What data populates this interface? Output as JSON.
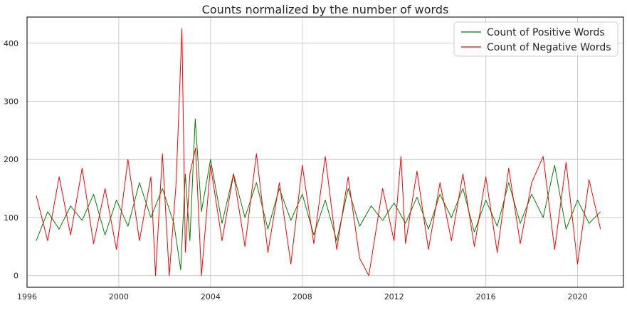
{
  "chart_data": {
    "type": "line",
    "title": "Counts normalized by the number of words",
    "xlabel": "",
    "ylabel": "",
    "xlim": [
      1996,
      2022
    ],
    "ylim": [
      -20,
      445
    ],
    "x_ticks": [
      1996,
      2000,
      2004,
      2008,
      2012,
      2016,
      2020
    ],
    "y_ticks": [
      0,
      100,
      200,
      300,
      400
    ],
    "grid": true,
    "legend_position": "top-right",
    "series": [
      {
        "name": "Count of Positive Words",
        "color": "#008000",
        "x": [
          1996.4,
          1996.9,
          1997.4,
          1997.9,
          1998.4,
          1998.9,
          1999.4,
          1999.9,
          2000.4,
          2000.9,
          2001.4,
          2001.9,
          2002.4,
          2002.7,
          2002.9,
          2003.1,
          2003.33,
          2003.6,
          2004.0,
          2004.5,
          2005.0,
          2005.5,
          2006.0,
          2006.5,
          2007.0,
          2007.5,
          2008.0,
          2008.5,
          2009.0,
          2009.5,
          2010.0,
          2010.5,
          2011.0,
          2011.5,
          2012.0,
          2012.5,
          2013.0,
          2013.5,
          2014.0,
          2014.5,
          2015.0,
          2015.5,
          2016.0,
          2016.5,
          2017.0,
          2017.5,
          2018.0,
          2018.5,
          2019.0,
          2019.5,
          2020.0,
          2020.5,
          2021.0
        ],
        "y": [
          60,
          110,
          80,
          120,
          95,
          140,
          70,
          130,
          85,
          160,
          100,
          150,
          90,
          10,
          175,
          60,
          270,
          110,
          200,
          90,
          175,
          100,
          160,
          80,
          150,
          95,
          140,
          70,
          130,
          60,
          150,
          85,
          120,
          95,
          125,
          90,
          135,
          80,
          140,
          100,
          150,
          75,
          130,
          85,
          160,
          90,
          140,
          100,
          190,
          80,
          130,
          90,
          110
        ]
      },
      {
        "name": "Count of Negative Words",
        "color": "#ff0000",
        "x": [
          1996.4,
          1996.9,
          1997.4,
          1997.9,
          1998.4,
          1998.9,
          1999.4,
          1999.9,
          2000.4,
          2000.9,
          2001.4,
          2001.6,
          2001.9,
          2002.2,
          2002.5,
          2002.75,
          2002.9,
          2003.1,
          2003.35,
          2003.6,
          2004.0,
          2004.5,
          2005.0,
          2005.5,
          2006.0,
          2006.5,
          2007.0,
          2007.5,
          2008.0,
          2008.5,
          2009.0,
          2009.5,
          2010.0,
          2010.5,
          2010.9,
          2011.5,
          2012.0,
          2012.3,
          2012.5,
          2013.0,
          2013.5,
          2014.0,
          2014.5,
          2015.0,
          2015.5,
          2016.0,
          2016.5,
          2017.0,
          2017.5,
          2018.0,
          2018.5,
          2019.0,
          2019.5,
          2020.0,
          2020.5,
          2021.0
        ],
        "y": [
          138,
          60,
          170,
          70,
          185,
          55,
          150,
          45,
          200,
          60,
          170,
          0,
          210,
          0,
          160,
          425,
          40,
          175,
          220,
          0,
          190,
          60,
          175,
          50,
          210,
          40,
          160,
          20,
          190,
          55,
          205,
          45,
          170,
          30,
          0,
          150,
          60,
          205,
          55,
          180,
          45,
          160,
          60,
          175,
          50,
          170,
          40,
          185,
          55,
          160,
          205,
          45,
          195,
          20,
          165,
          80
        ]
      }
    ]
  }
}
